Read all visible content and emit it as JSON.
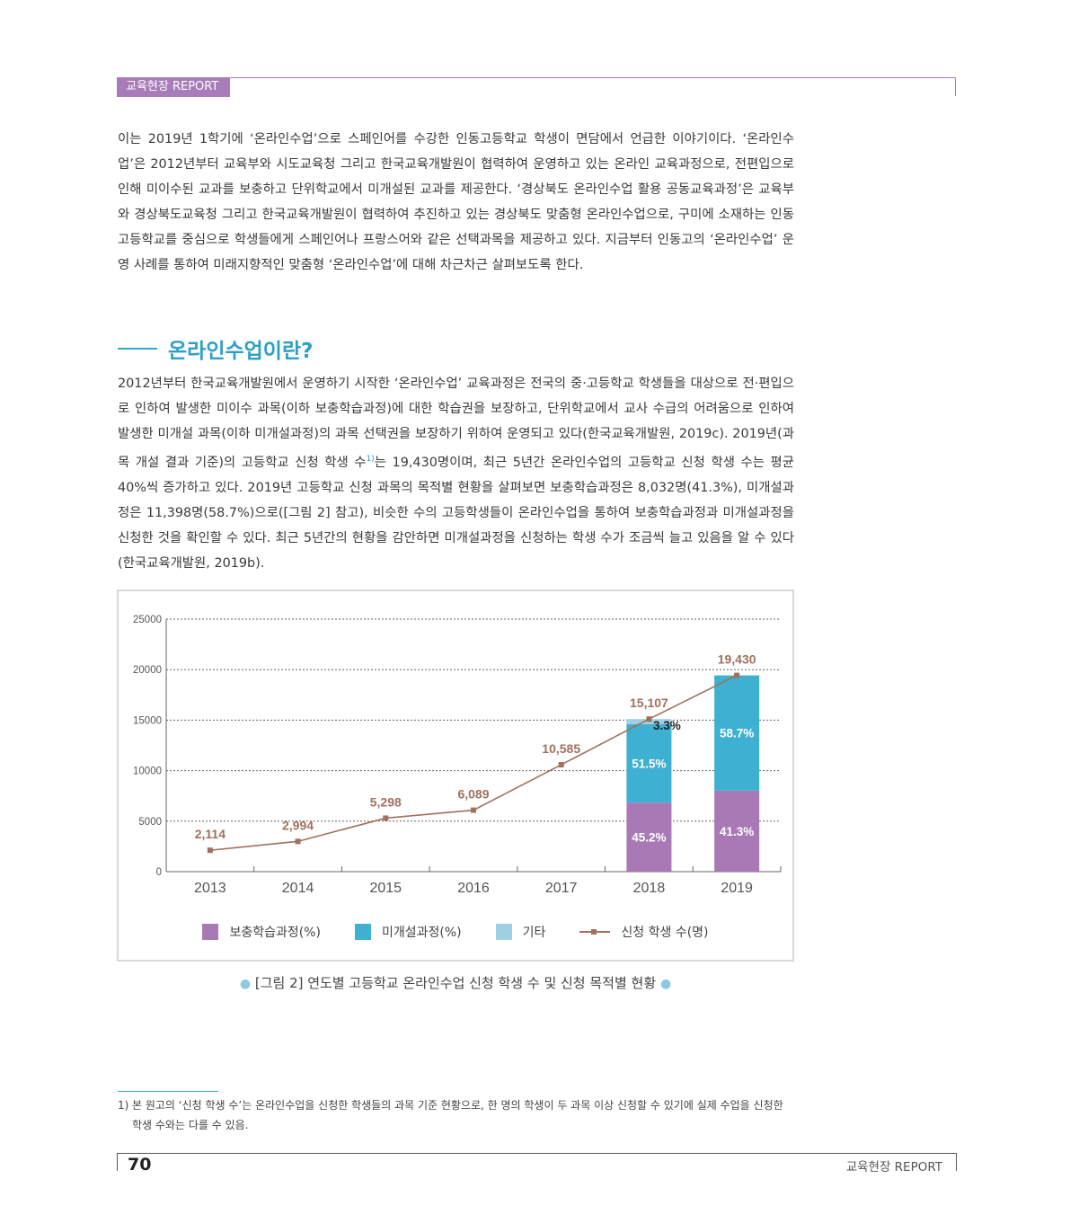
{
  "header": {
    "tag": "교육현장 REPORT"
  },
  "intro_paragraph": "이는 2019년 1학기에 ‘온라인수업’으로 스페인어를 수강한 인동고등학교 학생이 면담에서 언급한 이야기이다. ‘온라인수업’은 2012년부터 교육부와 시도교육청 그리고 한국교육개발원이 협력하여 운영하고 있는 온라인 교육과정으로, 전편입으로 인해 미이수된 교과를 보충하고 단위학교에서 미개설된 교과를 제공한다. ‘경상북도 온라인수업 활용 공동교육과정’은 교육부와 경상북도교육청 그리고 한국교육개발원이 협력하여 추진하고 있는 경상북도 맞춤형 온라인수업으로, 구미에 소재하는 인동고등학교를 중심으로 학생들에게 스페인어나 프랑스어와 같은 선택과목을 제공하고 있다. 지금부터 인동고의 ‘온라인수업’ 운영 사례를 통하여 미래지향적인 맞춤형 ‘온라인수업’에 대해 차근차근 살펴보도록 한다.",
  "section_title": "온라인수업이란?",
  "body": {
    "part1": "2012년부터 한국교육개발원에서 운영하기 시작한 ‘온라인수업’ 교육과정은 전국의 중·고등학교 학생들을 대상으로 전·편입으로 인하여 발생한 미이수 과목(이하 보충학습과정)에 대한 학습권을 보장하고, 단위학교에서 교사 수급의 어려움으로 인하여 발생한 미개설 과목(이하 미개설과정)의 과목 선택권을 보장하기 위하여 운영되고 있다(한국교육개발원, 2019c). 2019년(과목 개설 결과 기준)의 고등학교 신청 학생 수",
    "footnote_marker": "1)",
    "part2": "는 19,430명이며, 최근 5년간 온라인수업의 고등학교 신청 학생 수는 평균 40%씩 증가하고 있다. 2019년 고등학교 신청 과목의 목적별 현황을 살펴보면 보충학습과정은 8,032명(41.3%), 미개설과정은 11,398명(58.7%)으로([그림 2] 참고), 비슷한 수의 고등학생들이 온라인수업을 통하여 보충학습과정과 미개설과정을 신청한 것을 확인할 수 있다. 최근 5년간의 현황을 감안하면 미개설과정을 신청하는 학생 수가 조금씩 늘고 있음을 알 수 있다(한국교육개발원, 2019b)."
  },
  "chart_data": {
    "type": "bar",
    "categories": [
      "2013",
      "2014",
      "2015",
      "2016",
      "2017",
      "2018",
      "2019"
    ],
    "ylim": [
      0,
      25000
    ],
    "y_ticks": [
      "0",
      "5000",
      "10000",
      "15000",
      "20000",
      "25000"
    ],
    "grid": true,
    "stacked_series": [
      {
        "name": "보충학습과정(%)",
        "color": "#a979b6",
        "values": [
          null,
          null,
          null,
          null,
          null,
          45.2,
          41.3
        ],
        "labels": [
          null,
          null,
          null,
          null,
          null,
          "45.2%",
          "41.3%"
        ]
      },
      {
        "name": "미개설과정(%)",
        "color": "#3eb0d2",
        "values": [
          null,
          null,
          null,
          null,
          null,
          51.5,
          58.7
        ],
        "labels": [
          null,
          null,
          null,
          null,
          null,
          "51.5%",
          "58.7%"
        ]
      },
      {
        "name": "기타",
        "color": "#9fcfe2",
        "values": [
          null,
          null,
          null,
          null,
          null,
          3.3,
          0
        ],
        "labels": [
          null,
          null,
          null,
          null,
          null,
          "3.3%",
          null
        ]
      }
    ],
    "line_series": {
      "name": "신청 학생 수(명)",
      "color": "#a0715d",
      "values": [
        2114,
        2994,
        5298,
        6089,
        10585,
        15107,
        19430
      ],
      "labels": [
        "2,114",
        "2,994",
        "5,298",
        "6,089",
        "10,585",
        "15,107",
        "19,430"
      ]
    },
    "legend_position": "bottom"
  },
  "caption": "[그림 2] 연도별 고등학교 온라인수업 신청 학생 수 및 신청 목적별 현황",
  "footnote": {
    "number": "1)",
    "line1": "본 원고의 ‘신청 학생 수’는 온라인수업을 신청한 학생들의 과목 기준 현황으로, 한 명의 학생이 두 과목 이상 신청할 수 있기에 실제 수업을 신청한",
    "line2": "학생 수와는 다를 수 있음."
  },
  "footer": {
    "page_number": "70",
    "magazine": "교육현장 REPORT"
  }
}
